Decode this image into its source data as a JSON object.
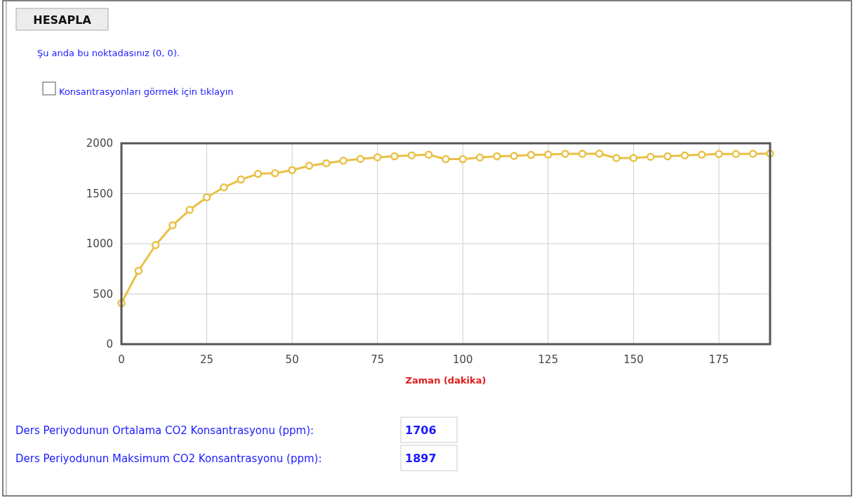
{
  "chart_data": {
    "type": "line",
    "xlabel": "Zaman (dakika)",
    "x": [
      0,
      5,
      10,
      15,
      20,
      25,
      30,
      35,
      40,
      45,
      50,
      55,
      60,
      65,
      70,
      75,
      80,
      85,
      90,
      95,
      100,
      105,
      110,
      115,
      120,
      125,
      130,
      135,
      140,
      145,
      150,
      155,
      160,
      165,
      170,
      175,
      180,
      185,
      190
    ],
    "series": [
      {
        "color": "#e9c046",
        "values": [
          408,
          731,
          986,
          1184,
          1337,
          1462,
          1561,
          1639,
          1695,
          1702,
          1733,
          1776,
          1801,
          1827,
          1844,
          1860,
          1870,
          1879,
          1886,
          1842,
          1842,
          1858,
          1870,
          1874,
          1884,
          1888,
          1895,
          1895,
          1897,
          1853,
          1853,
          1865,
          1870,
          1879,
          1886,
          1893,
          1893,
          1895,
          1897
        ]
      }
    ],
    "xlim": [
      0,
      190
    ],
    "xticks": [
      0,
      25,
      50,
      75,
      100,
      125,
      150,
      175
    ],
    "ylim": [
      0,
      2000
    ],
    "yticks": [
      0,
      500,
      1000,
      1500,
      2000
    ],
    "grid": true,
    "marker": "circle",
    "line_style": "solid",
    "annotations": [
      "HESAPLA",
      "Şu anda bu noktadasınız (0, 0).",
      "Konsantrasyonları görmek için tıklayın",
      "Ders Periyodunun Ortalama CO2 Konsantrasyonu (ppm):",
      "1706",
      "Ders Periyodunun Maksimum CO2 Konsantrasyonu (ppm):",
      "1897"
    ]
  }
}
